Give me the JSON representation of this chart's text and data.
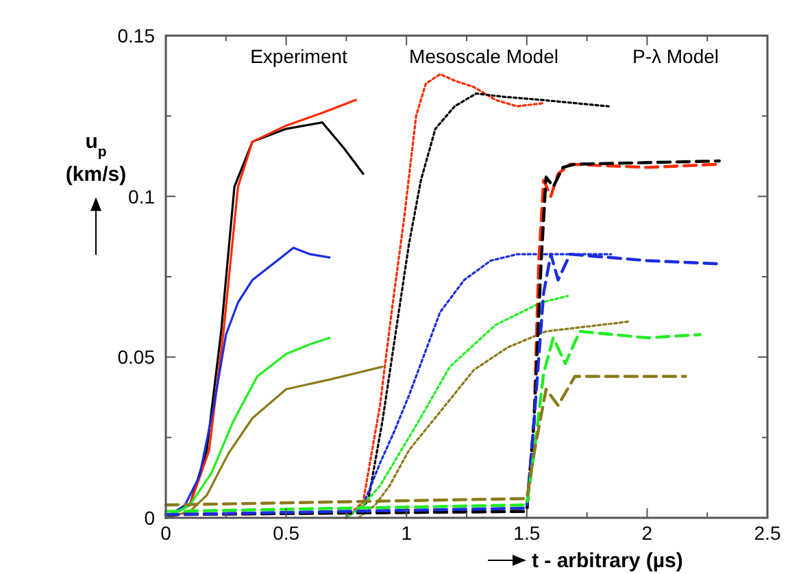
{
  "chart_data": {
    "type": "line",
    "xlabel": "t - arbitrary (µs)",
    "ylabel": "u$_{p}$ (km/s)",
    "xlim": [
      0,
      2.5
    ],
    "ylim": [
      0,
      0.15
    ],
    "xticks": [
      0,
      {
        "value": 0.25,
        "label": null
      },
      0.5,
      {
        "value": 0.75,
        "label": null
      },
      1,
      {
        "value": 1.25,
        "label": null
      },
      1.5,
      {
        "value": 1.75,
        "label": null
      },
      2,
      {
        "value": 2.25,
        "label": null
      },
      2.5
    ],
    "yticks": [
      0,
      {
        "value": 0.025,
        "label": null
      },
      0.05,
      {
        "value": 0.075,
        "label": null
      },
      0.1,
      {
        "value": 0.125,
        "label": null
      },
      0.15
    ],
    "annotations": [
      "Experiment",
      "Mesoscale Model",
      "P-λ Model"
    ],
    "series": [
      {
        "color": "#000000",
        "line_style": "solid",
        "x": [
          0,
          0.1,
          0.17,
          0.23,
          0.285,
          0.36,
          0.5,
          0.65,
          0.74,
          0.82
        ],
        "values": [
          0,
          0.004,
          0.021,
          0.058,
          0.103,
          0.117,
          0.121,
          0.123,
          0.115,
          0.107
        ]
      },
      {
        "color": "#ff2a00",
        "line_style": "solid",
        "x": [
          0,
          0.1,
          0.18,
          0.24,
          0.3,
          0.36,
          0.5,
          0.65,
          0.79
        ],
        "values": [
          0,
          0.004,
          0.021,
          0.058,
          0.103,
          0.117,
          0.122,
          0.126,
          0.13
        ]
      },
      {
        "color": "#1a2ee0",
        "line_style": "solid",
        "x": [
          0,
          0.08,
          0.14,
          0.2,
          0.25,
          0.3,
          0.36,
          0.48,
          0.53,
          0.6,
          0.68
        ],
        "values": [
          0,
          0.004,
          0.013,
          0.035,
          0.057,
          0.067,
          0.074,
          0.081,
          0.084,
          0.082,
          0.081
        ]
      },
      {
        "color": "#22ee22",
        "line_style": "solid",
        "x": [
          0,
          0.1,
          0.19,
          0.28,
          0.38,
          0.5,
          0.6,
          0.68
        ],
        "values": [
          0,
          0.004,
          0.014,
          0.03,
          0.044,
          0.051,
          0.054,
          0.056
        ]
      },
      {
        "color": "#8c7a1a",
        "line_style": "solid",
        "x": [
          0,
          0.1,
          0.17,
          0.26,
          0.36,
          0.5,
          0.68,
          0.9
        ],
        "values": [
          0,
          0.002,
          0.007,
          0.02,
          0.031,
          0.04,
          0.043,
          0.047
        ]
      },
      {
        "color": "#ff2a00",
        "line_style": "dotted",
        "x": [
          0.75,
          0.82,
          0.89,
          0.94,
          0.99,
          1.04,
          1.08,
          1.14,
          1.2,
          1.28,
          1.37,
          1.46,
          1.57
        ],
        "values": [
          0,
          0.005,
          0.035,
          0.065,
          0.093,
          0.125,
          0.135,
          0.138,
          0.136,
          0.134,
          0.13,
          0.128,
          0.129
        ]
      },
      {
        "color": "#000000",
        "line_style": "dotted",
        "x": [
          0.75,
          0.84,
          0.9,
          0.96,
          1.01,
          1.06,
          1.12,
          1.2,
          1.29,
          1.4,
          1.56,
          1.84
        ],
        "values": [
          0,
          0.005,
          0.03,
          0.06,
          0.085,
          0.105,
          0.121,
          0.128,
          0.132,
          0.131,
          0.13,
          0.128
        ]
      },
      {
        "color": "#1a2ee0",
        "line_style": "dotted",
        "x": [
          0.75,
          0.82,
          0.89,
          0.95,
          1.01,
          1.08,
          1.14,
          1.24,
          1.35,
          1.46,
          1.85
        ],
        "values": [
          0,
          0.004,
          0.017,
          0.027,
          0.038,
          0.052,
          0.064,
          0.074,
          0.08,
          0.082,
          0.082
        ]
      },
      {
        "color": "#22ee22",
        "line_style": "dotted",
        "x": [
          0.75,
          0.82,
          0.89,
          0.97,
          1.05,
          1.18,
          1.37,
          1.56,
          1.67
        ],
        "values": [
          0,
          0.004,
          0.01,
          0.02,
          0.03,
          0.047,
          0.06,
          0.067,
          0.069
        ]
      },
      {
        "color": "#8c7a1a",
        "line_style": "dotted",
        "x": [
          0.8,
          0.87,
          0.93,
          1.01,
          1.14,
          1.28,
          1.42,
          1.58,
          1.92
        ],
        "values": [
          0,
          0.004,
          0.01,
          0.021,
          0.033,
          0.046,
          0.053,
          0.058,
          0.061
        ]
      },
      {
        "color": "#ff2a00",
        "line_style": "dashed",
        "x": [
          0,
          1.5,
          1.53,
          1.55,
          1.57,
          1.6,
          1.63,
          1.68,
          2,
          2.3
        ],
        "values": [
          0.001,
          0.002,
          0.03,
          0.08,
          0.105,
          0.1,
          0.107,
          0.11,
          0.109,
          0.11
        ]
      },
      {
        "color": "#000000",
        "line_style": "dashed",
        "x": [
          0,
          1.5,
          1.53,
          1.56,
          1.58,
          1.61,
          1.65,
          1.7,
          2.3
        ],
        "values": [
          0.001,
          0.002,
          0.03,
          0.08,
          0.106,
          0.103,
          0.109,
          0.11,
          0.111
        ]
      },
      {
        "color": "#1a2ee0",
        "line_style": "dashed",
        "x": [
          0,
          1.5,
          1.53,
          1.57,
          1.6,
          1.63,
          1.68,
          2,
          2.3
        ],
        "values": [
          0.001,
          0.003,
          0.03,
          0.07,
          0.082,
          0.074,
          0.082,
          0.08,
          0.079
        ]
      },
      {
        "color": "#22ee22",
        "line_style": "dashed",
        "x": [
          0,
          1.5,
          1.53,
          1.57,
          1.61,
          1.66,
          1.72,
          2,
          2.22
        ],
        "values": [
          0.002,
          0.004,
          0.02,
          0.045,
          0.056,
          0.048,
          0.058,
          0.056,
          0.057
        ]
      },
      {
        "color": "#8c7a1a",
        "line_style": "dashed",
        "x": [
          0,
          1.5,
          1.53,
          1.58,
          1.63,
          1.7,
          2.16
        ],
        "values": [
          0.004,
          0.006,
          0.02,
          0.04,
          0.035,
          0.044,
          0.044
        ]
      }
    ]
  }
}
